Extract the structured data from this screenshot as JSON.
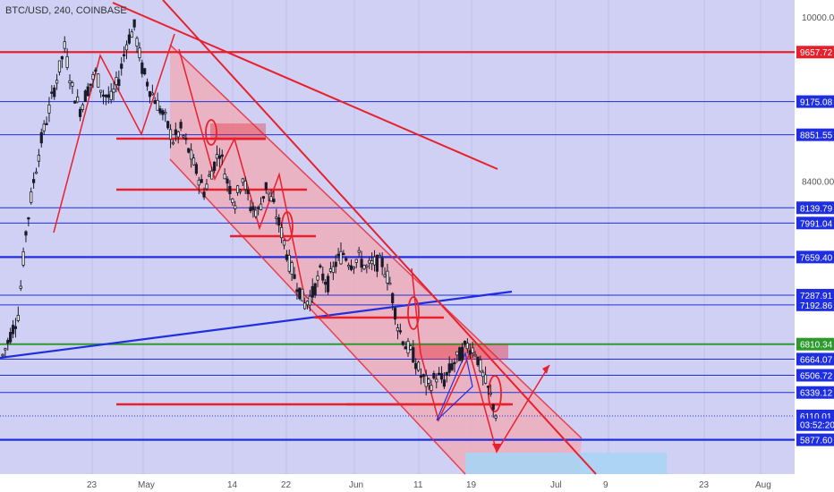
{
  "header": {
    "symbol_line": "BTC/USD, 240, COINBASE"
  },
  "colors": {
    "background": "#cfd0f4",
    "red": "#e8202c",
    "blue": "#1f2fe0",
    "green": "#2e9a2e",
    "channel_fill": "#f1a9b4",
    "candle": "#1a1a2a",
    "axis_bg": "#ffffff"
  },
  "chart_data": {
    "type": "candlestick",
    "symbol": "BTC/USD",
    "interval": "240",
    "exchange": "COINBASE",
    "y_axis_ticks": [
      "10000.00",
      "8400.00"
    ],
    "price_labels": [
      {
        "text": "9657.72",
        "value": 9657.72,
        "color": "red"
      },
      {
        "text": "9175.08",
        "value": 9175.08,
        "color": "blue"
      },
      {
        "text": "8851.55",
        "value": 8851.55,
        "color": "blue"
      },
      {
        "text": "8139.79",
        "value": 8139.79,
        "color": "blue"
      },
      {
        "text": "7991.04",
        "value": 7991.04,
        "color": "blue"
      },
      {
        "text": "7659.40",
        "value": 7659.4,
        "color": "blue"
      },
      {
        "text": "7287.91",
        "value": 7287.91,
        "color": "blue"
      },
      {
        "text": "7192.86",
        "value": 7192.86,
        "color": "blue"
      },
      {
        "text": "6810.34",
        "value": 6810.34,
        "color": "green"
      },
      {
        "text": "6664.07",
        "value": 6664.07,
        "color": "blue"
      },
      {
        "text": "6506.72",
        "value": 6506.72,
        "color": "blue"
      },
      {
        "text": "6339.12",
        "value": 6339.12,
        "color": "blue"
      },
      {
        "text": "6110.01",
        "value": 6110.01,
        "color": "blue"
      },
      {
        "text": "03:52:20",
        "value": 6025,
        "color": "blue"
      },
      {
        "text": "5877.60",
        "value": 5877.6,
        "color": "blue"
      }
    ],
    "x_axis_ticks": [
      "23",
      "May",
      "14",
      "22",
      "Jun",
      "11",
      "19",
      "Jul",
      "9",
      "23",
      "Aug"
    ],
    "horizontal_levels": [
      9657.72,
      9175.08,
      8851.55,
      8139.79,
      7991.04,
      7659.4,
      7287.91,
      7192.86,
      6810.34,
      6664.07,
      6506.72,
      6339.12,
      5877.6
    ],
    "price_path": [
      6700,
      6900,
      7100,
      7900,
      8400,
      8800,
      9100,
      9400,
      9700,
      9300,
      9100,
      9300,
      9450,
      9250,
      9200,
      9400,
      9750,
      9900,
      9500,
      9300,
      9150,
      9000,
      8800,
      8900,
      8700,
      8500,
      8300,
      8500,
      8700,
      8400,
      8200,
      8450,
      8150,
      8100,
      8350,
      8150,
      7900,
      7600,
      7400,
      7200,
      7300,
      7500,
      7400,
      7600,
      7700,
      7600,
      7650,
      7550,
      7600,
      7600,
      7400,
      7000,
      6800,
      6700,
      6500,
      6400,
      6500,
      6450,
      6600,
      6700,
      6800,
      6750,
      6500,
      6300,
      6050
    ]
  }
}
